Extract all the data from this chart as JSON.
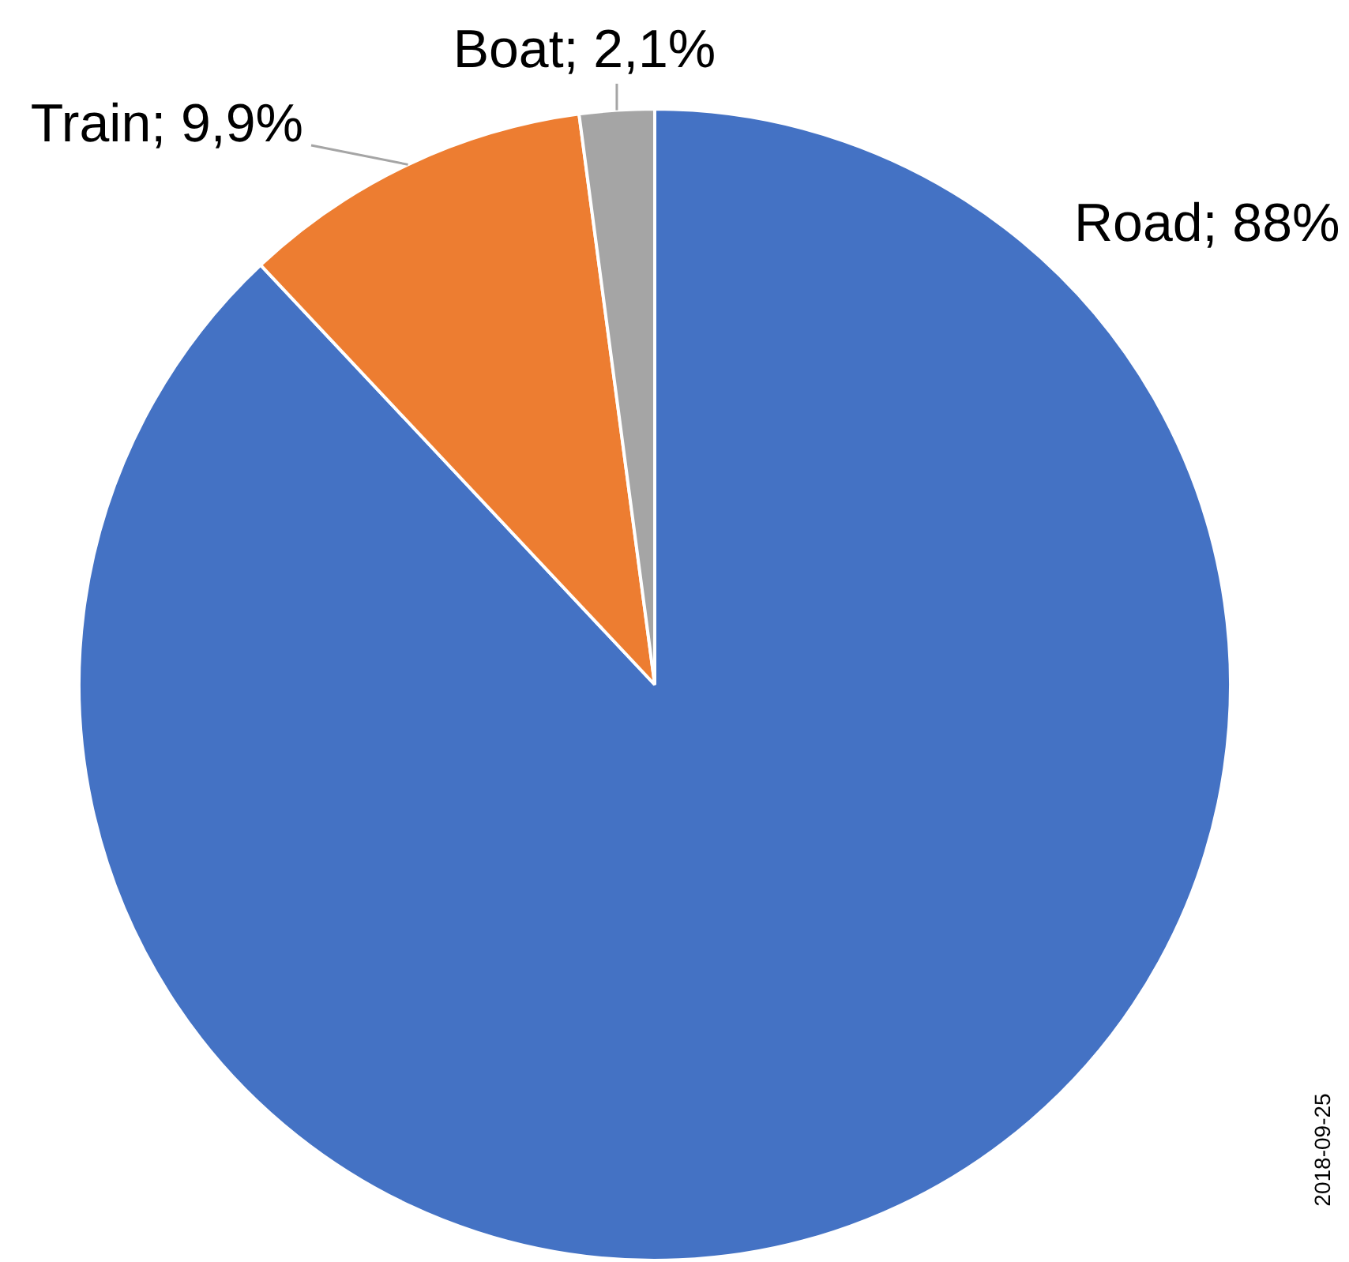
{
  "chart_data": {
    "type": "pie",
    "categories": [
      "Road",
      "Train",
      "Boat"
    ],
    "values": [
      88,
      9.9,
      2.1
    ],
    "colors": [
      "#4472c4",
      "#ed7d31",
      "#a5a5a5"
    ],
    "value_labels": [
      "88%",
      "9,9%",
      "2,1%"
    ],
    "legend": false,
    "annotations": [
      "2018-09-25"
    ]
  }
}
